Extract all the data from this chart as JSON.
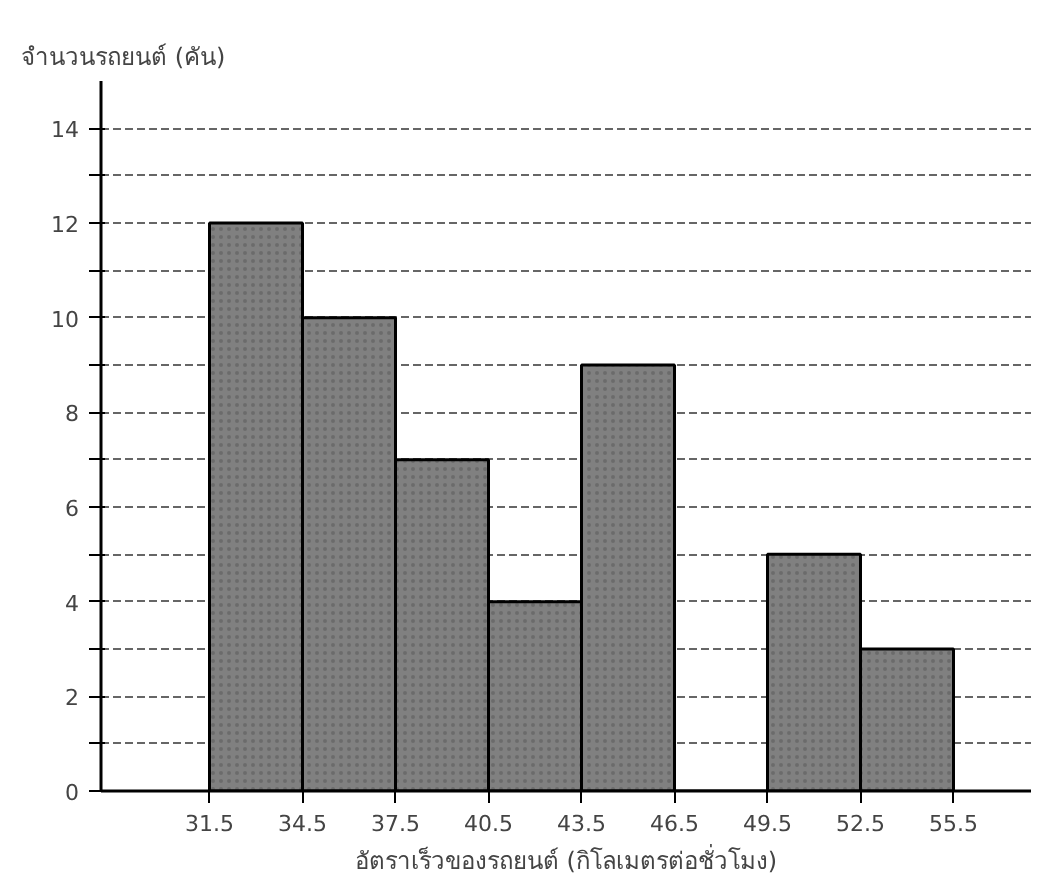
{
  "chart_data": {
    "type": "histogram",
    "xlabel": "อัตราเร็วของรถยนต์ (กิโลเมตรต่อชั่วโมง)",
    "ylabel": "จำนวนรถยนต์ (คัน)",
    "bins": [
      31.5,
      34.5,
      37.5,
      40.5,
      43.5,
      46.5,
      49.5,
      52.5,
      55.5
    ],
    "values": [
      12,
      10,
      7,
      4,
      9,
      0,
      5,
      3
    ],
    "color": "#808080",
    "xlim": [
      28,
      58
    ],
    "ylim": [
      0,
      15
    ],
    "xticks": [
      31.5,
      34.5,
      37.5,
      40.5,
      43.5,
      46.5,
      49.5,
      52.5,
      55.5
    ],
    "yticks": [
      0,
      {
        "value": 1,
        "label": null
      },
      2,
      {
        "value": 3,
        "label": null
      },
      4,
      {
        "value": 5,
        "label": null
      },
      6,
      {
        "value": 7,
        "label": null
      },
      8,
      {
        "value": 9,
        "label": null
      },
      10,
      {
        "value": 11,
        "label": null
      },
      12,
      {
        "value": 13,
        "label": null
      },
      14
    ],
    "grid": "y"
  }
}
